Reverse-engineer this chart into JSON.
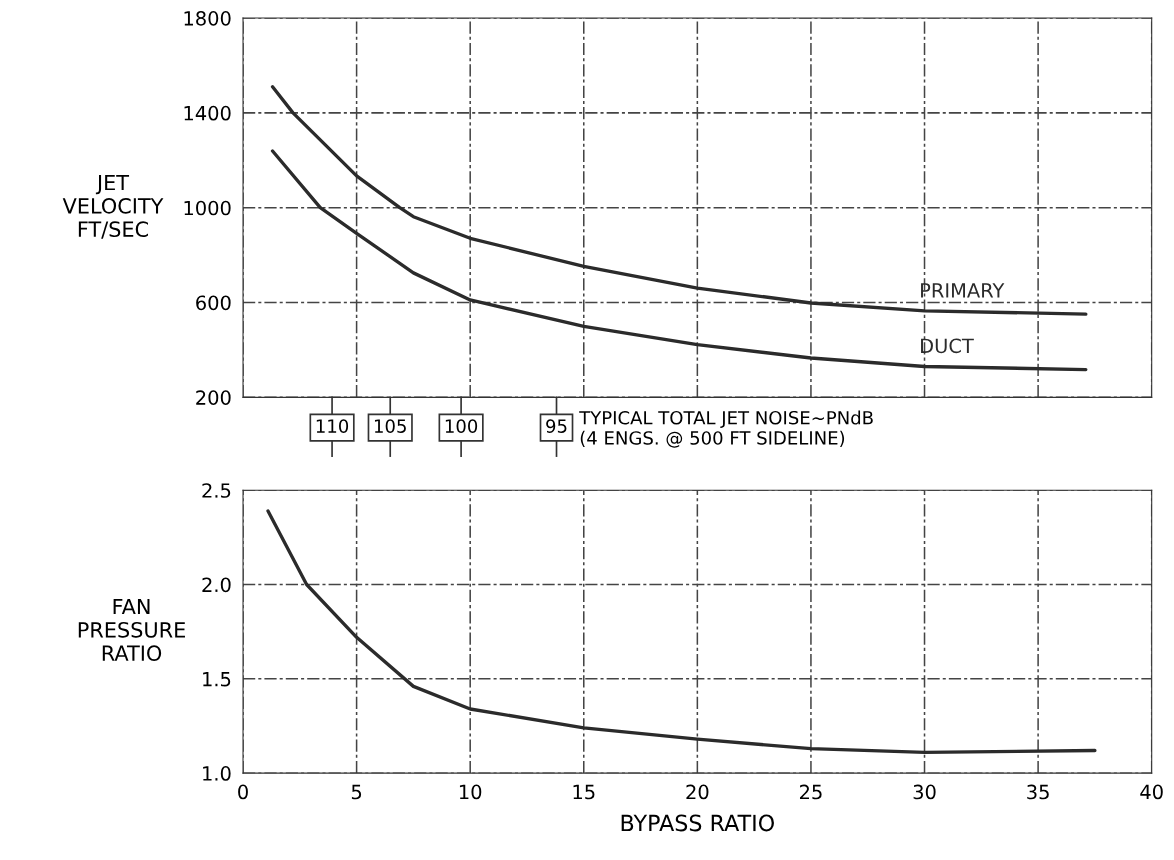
{
  "chart_data": [
    {
      "type": "line",
      "ylabel": "JET\nVELOCITY\nFT/SEC",
      "xlim": [
        0,
        40
      ],
      "ylim": [
        200,
        1800
      ],
      "xticks": [
        0,
        5,
        10,
        15,
        20,
        25,
        30,
        35,
        40
      ],
      "yticks": [
        200,
        600,
        1000,
        1400,
        1800
      ],
      "tick_labels": "y",
      "grid": true,
      "line_style": "solid",
      "marker": "none",
      "series": [
        {
          "name": "PRIMARY",
          "color": "#2b2b2b",
          "x": [
            1.3,
            2.2,
            5,
            6.9,
            7.5,
            10,
            15,
            20,
            25,
            30,
            37.1
          ],
          "values": [
            1510,
            1400,
            1134,
            1000,
            962,
            871,
            752,
            661,
            598,
            565,
            551
          ]
        },
        {
          "name": "DUCT",
          "color": "#2b2b2b",
          "x": [
            1.3,
            3.4,
            5,
            7.5,
            10,
            15,
            20,
            25,
            30,
            37.1
          ],
          "values": [
            1239,
            1000,
            892,
            725,
            611,
            499,
            422,
            366,
            330,
            317
          ]
        }
      ],
      "annotations": [
        "110",
        "105",
        "100",
        "95",
        "TYPICAL TOTAL JET NOISE~PNdB\n(4 ENGS. @ 500 FT SIDELINE)"
      ]
    },
    {
      "type": "line",
      "ylabel": "FAN\nPRESSURE\nRATIO",
      "xlabel": "BYPASS RATIO",
      "xlim": [
        0,
        40
      ],
      "ylim": [
        1.0,
        2.5
      ],
      "xticks": [
        0,
        5,
        10,
        15,
        20,
        25,
        30,
        35,
        40
      ],
      "yticks": [
        {
          "value": 1.0,
          "label": "1.0"
        },
        {
          "value": 1.5,
          "label": "1.5"
        },
        {
          "value": 2.0,
          "label": "2.0"
        },
        {
          "value": 2.5,
          "label": "2.5"
        }
      ],
      "grid": true,
      "line_style": "solid",
      "marker": "none",
      "series": [
        {
          "color": "#2b2b2b",
          "x": [
            1.1,
            2.8,
            5,
            7.5,
            10,
            15,
            20,
            25,
            30,
            37.5
          ],
          "values": [
            2.39,
            2.0,
            1.72,
            1.46,
            1.34,
            1.24,
            1.18,
            1.13,
            1.11,
            1.12
          ]
        }
      ]
    }
  ]
}
